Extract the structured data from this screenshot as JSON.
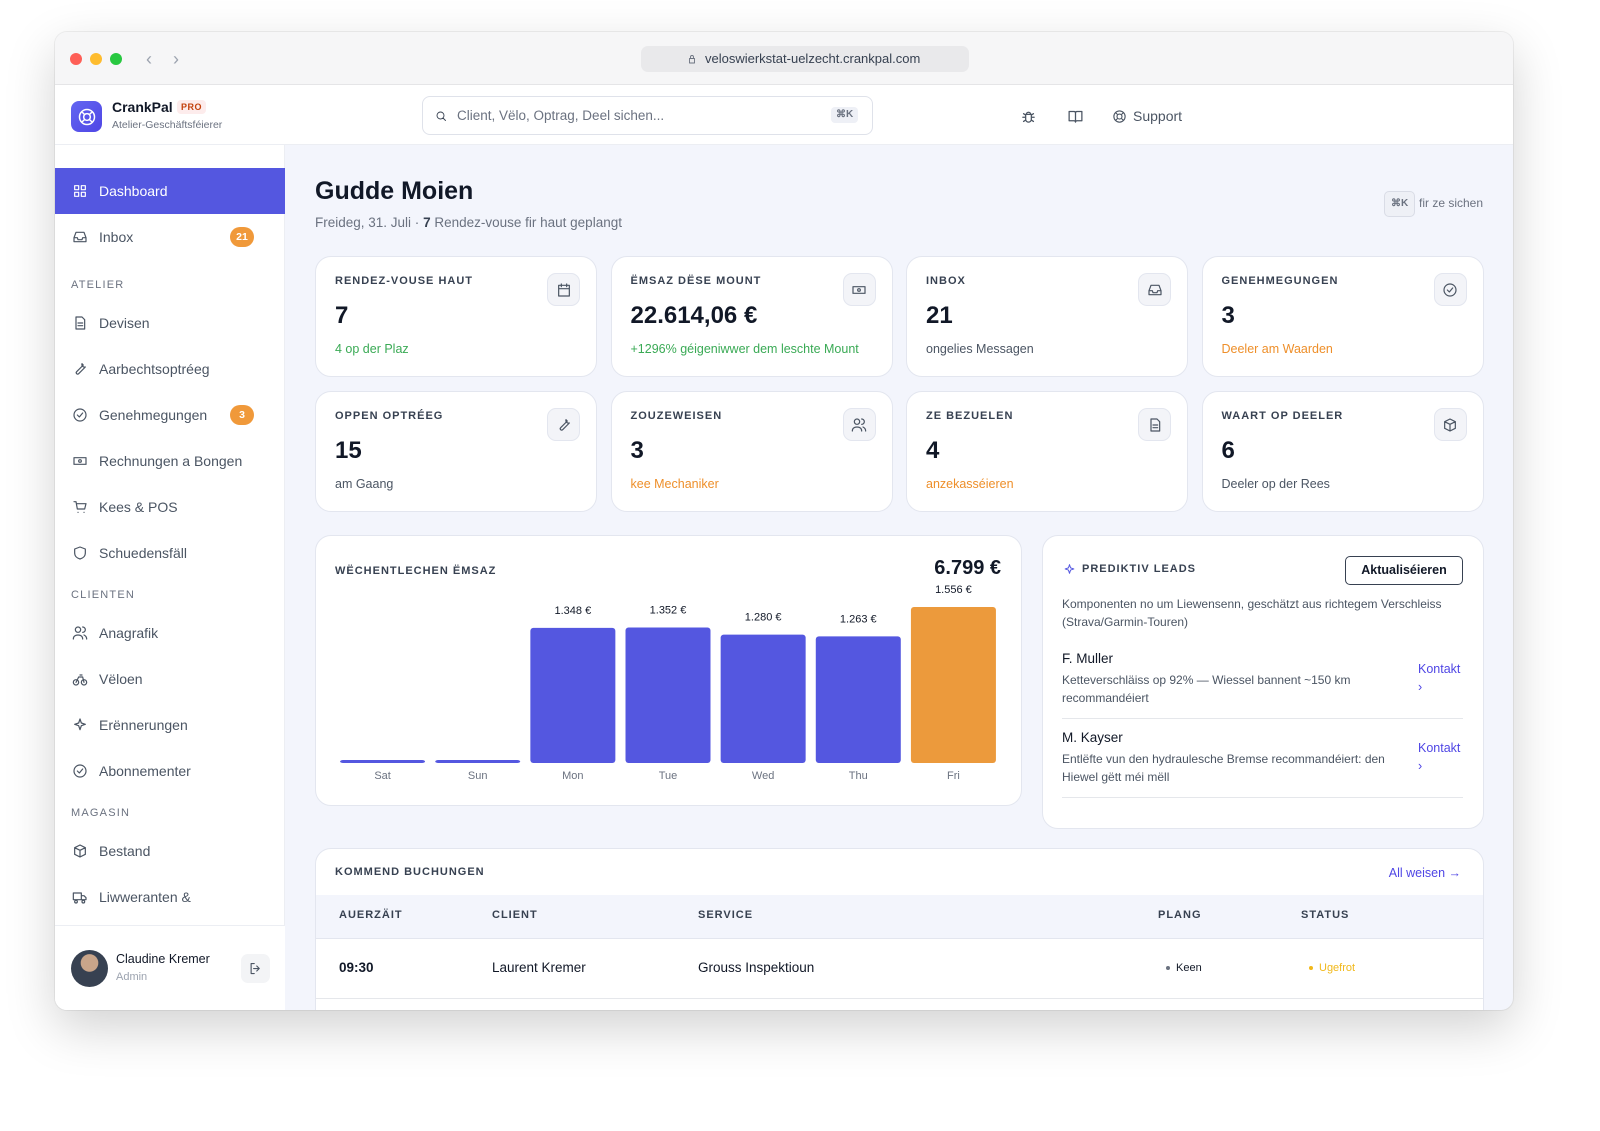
{
  "browser": {
    "url": "veloswierkstat-uelzecht.crankpal.com"
  },
  "header": {
    "brand": "CrankPal",
    "badge": "PRO",
    "subtitle": "Atelier-Geschäftsféierer",
    "search_placeholder": "Client, Vëlo, Optrag, Deel sichen...",
    "search_shortcut": "⌘K",
    "support": "Support"
  },
  "sidebar": {
    "top": [
      {
        "label": "Dashboard",
        "active": true
      },
      {
        "label": "Inbox",
        "badge": "21"
      }
    ],
    "sections": [
      {
        "title": "ATELIER",
        "items": [
          {
            "label": "Devisen"
          },
          {
            "label": "Aarbechtsoptréeg"
          },
          {
            "label": "Genehmegungen",
            "badge": "3"
          },
          {
            "label": "Rechnungen a Bongen"
          },
          {
            "label": "Kees & POS"
          },
          {
            "label": "Schuedensfäll"
          }
        ]
      },
      {
        "title": "CLIENTEN",
        "items": [
          {
            "label": "Anagrafik"
          },
          {
            "label": "Vëloen"
          },
          {
            "label": "Erënnerungen"
          },
          {
            "label": "Abonnementer"
          }
        ]
      },
      {
        "title": "MAGASIN",
        "items": [
          {
            "label": "Bestand"
          },
          {
            "label": "Liwweranten &"
          }
        ]
      }
    ],
    "user": {
      "name": "Claudine Kremer",
      "role": "Admin"
    }
  },
  "main": {
    "greeting": "Gudde Moien",
    "date": "Freideg, 31. Juli ·",
    "appointments_count": "7",
    "appointments_text": "Rendez-vouse fir haut geplangt",
    "shortcut": "⌘K",
    "shortcut_text": "fir ze sichen",
    "stats": [
      {
        "label": "RENDEZ-VOUSE HAUT",
        "value": "7",
        "note": "4 op der Plaz",
        "note_color": "#3aaa55"
      },
      {
        "label": "ËMSAZ DËSE MOUNT",
        "value": "22.614,06 €",
        "note": "+1296% géigeniwwer dem leschte Mount",
        "note_color": "#3aaa55"
      },
      {
        "label": "INBOX",
        "value": "21",
        "note": "ongelies Messagen",
        "note_color": "#4b5563"
      },
      {
        "label": "GENEHMEGUNGEN",
        "value": "3",
        "note": "Deeler am Waarden",
        "note_color": "#ee8f2a"
      },
      {
        "label": "OPPEN OPTRÉEG",
        "value": "15",
        "note": "am Gaang",
        "note_color": "#4b5563"
      },
      {
        "label": "ZOUZEWEISEN",
        "value": "3",
        "note": "kee Mechaniker",
        "note_color": "#ee8f2a"
      },
      {
        "label": "ZE BEZUELEN",
        "value": "4",
        "note": "anzekasséieren",
        "note_color": "#ee8f2a"
      },
      {
        "label": "WAART OP DEELER",
        "value": "6",
        "note": "Deeler op der Rees",
        "note_color": "#4b5563"
      }
    ],
    "leads": {
      "title": "PREDIKTIV LEADS",
      "button": "Aktualiséieren",
      "description": "Komponenten no um Liewensenn, geschätzt aus richtegem Verschleiss (Strava/Garmin-Touren)",
      "items": [
        {
          "name": "F. Muller",
          "text": "Ketteverschläiss op 92% — Wiessel bannent ~150 km recommandéiert",
          "action": "Kontakt ›"
        },
        {
          "name": "M. Kayser",
          "text": "Entlëfte vun den hydraulesche Bremse recommandéiert: den Hiewel gëtt méi mëll",
          "action": "Kontakt ›"
        }
      ]
    },
    "bookings": {
      "title": "KOMMEND BUCHUNGEN",
      "link": "All weisen →",
      "columns": [
        "AUERZÄIT",
        "CLIENT",
        "SERVICE",
        "PLANG",
        "STATUS"
      ],
      "rows": [
        [
          "09:30",
          "Laurent Kremer",
          "Grouss Inspektioun",
          "Keen",
          "Ugefrot"
        ]
      ]
    }
  },
  "chart_data": {
    "type": "bar",
    "title": "WËCHENTLECHEN ËMSAZ",
    "total": "6.799 €",
    "categories": [
      "Sat",
      "Sun",
      "Mon",
      "Tue",
      "Wed",
      "Thu",
      "Fri"
    ],
    "values": [
      0,
      0,
      1348,
      1352,
      1280,
      1263,
      1556
    ],
    "value_labels": [
      null,
      null,
      "1.348 €",
      "1.352 €",
      "1.280 €",
      "1.263 €",
      "1.556 €"
    ],
    "colors": [
      "#5457e0",
      "#5457e0",
      "#5457e0",
      "#5457e0",
      "#5457e0",
      "#5457e0",
      "#ec9a3c"
    ]
  }
}
